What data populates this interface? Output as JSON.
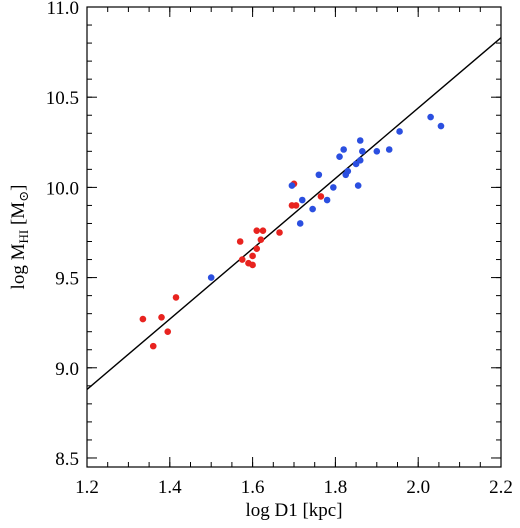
{
  "chart_data": {
    "type": "scatter",
    "xlabel": "log D1 [kpc]",
    "ylabel_parts": {
      "prefix": "log M",
      "subscript": "HI",
      "unit_open": " [M",
      "unit_sub": "⊙",
      "unit_close": "]"
    },
    "xlim": [
      1.2,
      2.2
    ],
    "ylim": [
      8.45,
      11.0
    ],
    "x_ticks": [
      "1.2",
      "1.4",
      "1.6",
      "1.8",
      "2.0",
      "2.2"
    ],
    "y_ticks": [
      "8.5",
      "9.0",
      "9.5",
      "10.0",
      "10.5",
      "11.0"
    ],
    "x_tick_values": [
      1.2,
      1.4,
      1.6,
      1.8,
      2.0,
      2.2
    ],
    "y_tick_values": [
      8.5,
      9.0,
      9.5,
      10.0,
      10.5,
      11.0
    ],
    "x_minor_step": 0.05,
    "y_minor_step": 0.1,
    "grid": false,
    "fit_line": {
      "x": [
        1.2,
        2.2
      ],
      "y": [
        8.88,
        10.83
      ],
      "color": "#000000"
    },
    "series": [
      {
        "color": "#e8231f",
        "x": [
          1.335,
          1.36,
          1.38,
          1.395,
          1.415,
          1.57,
          1.575,
          1.59,
          1.6,
          1.6,
          1.61,
          1.61,
          1.62,
          1.625,
          1.665,
          1.695,
          1.7,
          1.705,
          1.765
        ],
        "y": [
          9.27,
          9.12,
          9.28,
          9.2,
          9.39,
          9.7,
          9.6,
          9.58,
          9.57,
          9.62,
          9.66,
          9.76,
          9.71,
          9.76,
          9.75,
          9.9,
          10.02,
          9.9,
          9.95
        ]
      },
      {
        "color": "#2b4fe0",
        "x": [
          1.5,
          1.695,
          1.715,
          1.72,
          1.745,
          1.76,
          1.78,
          1.795,
          1.81,
          1.82,
          1.825,
          1.83,
          1.85,
          1.855,
          1.86,
          1.86,
          1.865,
          1.9,
          1.93,
          1.955,
          2.03,
          2.055
        ],
        "y": [
          9.5,
          10.01,
          9.8,
          9.93,
          9.88,
          10.07,
          9.93,
          10.0,
          10.17,
          10.21,
          10.07,
          10.09,
          10.13,
          10.01,
          10.26,
          10.15,
          10.2,
          10.2,
          10.21,
          10.31,
          10.39,
          10.34
        ]
      }
    ]
  }
}
